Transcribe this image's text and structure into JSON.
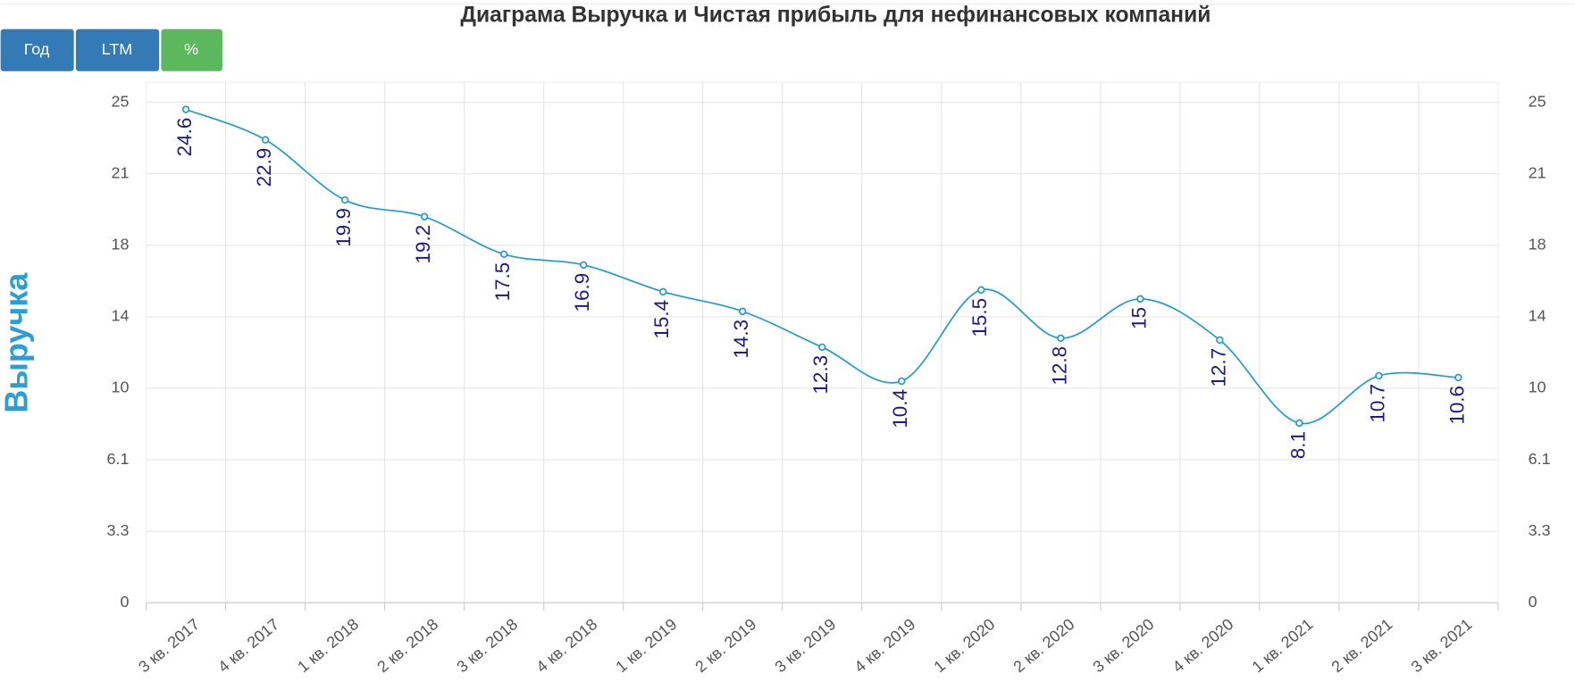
{
  "chart_data": {
    "type": "line",
    "title": "Диаграма Выручка и Чистая прибыль для нефинансовых компаний",
    "buttons": [
      "Год",
      "LTM",
      "%"
    ],
    "y_label": "Выручка",
    "categories": [
      "3 кв. 2017",
      "4 кв. 2017",
      "1 кв. 2018",
      "2 кв. 2018",
      "3 кв. 2018",
      "4 кв. 2018",
      "1 кв. 2019",
      "2 кв. 2019",
      "3 кв. 2019",
      "4 кв. 2019",
      "1 кв. 2020",
      "2 кв. 2020",
      "3 кв. 2020",
      "4 кв. 2020",
      "1 кв. 2021",
      "2 кв. 2021",
      "3 кв. 2021"
    ],
    "series": [
      {
        "name": "Выручка",
        "color": "#1f9bcf",
        "values": [
          24.6,
          22.9,
          19.9,
          19.2,
          17.5,
          16.9,
          15.4,
          14.3,
          12.3,
          10.4,
          15.5,
          12.8,
          15,
          12.7,
          8.1,
          10.7,
          10.6
        ]
      }
    ],
    "ylim": [
      0,
      25
    ],
    "yticks": [
      0,
      3.3,
      6.1,
      10,
      14,
      18,
      21,
      25
    ],
    "y2lim": [
      0,
      25
    ],
    "y2ticks": [
      0,
      3.3,
      6.1,
      10,
      14,
      18,
      21,
      25
    ],
    "grid": true
  }
}
